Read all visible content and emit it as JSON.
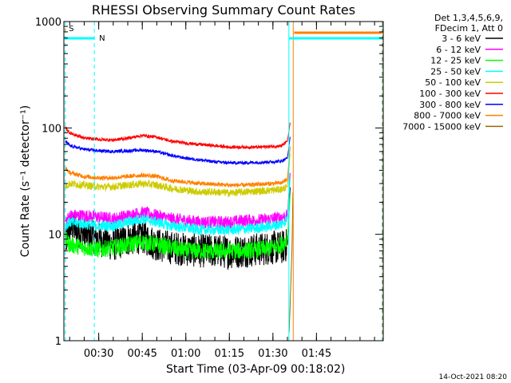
{
  "chart_data": {
    "type": "line",
    "title": "RHESSI Observing Summary Count Rates",
    "xlabel": "Start Time (03-Apr-09 00:18:02)",
    "ylabel": "Count Rate (s⁻¹ detector⁻¹)",
    "yscale": "log",
    "ylim": [
      1,
      1000
    ],
    "xlim_minutes": [
      18,
      128
    ],
    "y_ticks": [
      {
        "value": 1,
        "label": "1"
      },
      {
        "value": 10,
        "label": "10"
      },
      {
        "value": 100,
        "label": "100"
      },
      {
        "value": 1000,
        "label": "1000"
      }
    ],
    "x_ticks": [
      {
        "minute": 30,
        "label": "00:30"
      },
      {
        "minute": 45,
        "label": "00:45"
      },
      {
        "minute": 60,
        "label": "01:00"
      },
      {
        "minute": 75,
        "label": "01:15"
      },
      {
        "minute": 90,
        "label": "01:30"
      },
      {
        "minute": 105,
        "label": "01:45"
      }
    ],
    "legend_header": [
      "Det 1,3,4,5,6,9,",
      "FDecim 1, Att 0"
    ],
    "legend_position": "right",
    "series": [
      {
        "name": "3 - 6 keV",
        "color": "#000000",
        "noise": 0.16,
        "points": [
          [
            18.5,
            8
          ],
          [
            20,
            12
          ],
          [
            25,
            10
          ],
          [
            30,
            9
          ],
          [
            35,
            8
          ],
          [
            40,
            9
          ],
          [
            45,
            9.5
          ],
          [
            50,
            8
          ],
          [
            55,
            7.5
          ],
          [
            60,
            7.2
          ],
          [
            65,
            7
          ],
          [
            70,
            7
          ],
          [
            75,
            6.8
          ],
          [
            80,
            7
          ],
          [
            85,
            7.2
          ],
          [
            90,
            7.5
          ],
          [
            93,
            7.5
          ],
          [
            95,
            8
          ],
          [
            96,
            30
          ]
        ]
      },
      {
        "name": "6 - 12 keV",
        "color": "#ff00ff",
        "noise": 0.06,
        "points": [
          [
            18.5,
            13
          ],
          [
            20,
            15
          ],
          [
            25,
            15
          ],
          [
            30,
            14.5
          ],
          [
            35,
            14
          ],
          [
            40,
            15
          ],
          [
            45,
            16
          ],
          [
            50,
            15
          ],
          [
            55,
            14
          ],
          [
            60,
            13.5
          ],
          [
            65,
            13
          ],
          [
            70,
            13
          ],
          [
            75,
            13
          ],
          [
            80,
            13.5
          ],
          [
            85,
            13.5
          ],
          [
            90,
            14
          ],
          [
            93,
            14.5
          ],
          [
            95,
            15
          ],
          [
            96,
            40
          ]
        ]
      },
      {
        "name": "12 - 25 keV",
        "color": "#00ff00",
        "noise": 0.08,
        "points": [
          [
            18.5,
            9
          ],
          [
            20,
            8
          ],
          [
            25,
            7.5
          ],
          [
            30,
            7.2
          ],
          [
            35,
            7.5
          ],
          [
            40,
            8
          ],
          [
            45,
            8.5
          ],
          [
            50,
            8
          ],
          [
            55,
            7.5
          ],
          [
            60,
            7
          ],
          [
            65,
            7
          ],
          [
            70,
            6.9
          ],
          [
            75,
            7
          ],
          [
            80,
            7
          ],
          [
            85,
            7.2
          ],
          [
            90,
            7.5
          ],
          [
            93,
            8
          ],
          [
            95,
            9
          ],
          [
            96,
            25
          ]
        ]
      },
      {
        "name": "25 - 50 keV",
        "color": "#00ffff",
        "noise": 0.05,
        "points": [
          [
            18.5,
            12
          ],
          [
            20,
            13
          ],
          [
            25,
            12.5
          ],
          [
            30,
            12
          ],
          [
            35,
            12
          ],
          [
            40,
            13
          ],
          [
            45,
            14
          ],
          [
            50,
            13
          ],
          [
            55,
            12
          ],
          [
            60,
            11.5
          ],
          [
            65,
            11
          ],
          [
            70,
            11
          ],
          [
            75,
            11
          ],
          [
            80,
            11.2
          ],
          [
            85,
            11.5
          ],
          [
            90,
            12
          ],
          [
            93,
            12.5
          ],
          [
            95,
            14
          ],
          [
            96,
            35
          ]
        ]
      },
      {
        "name": "50 - 100 keV",
        "color": "#cccc00",
        "noise": 0.035,
        "points": [
          [
            18.5,
            28
          ],
          [
            20,
            30
          ],
          [
            25,
            29
          ],
          [
            30,
            28
          ],
          [
            35,
            28
          ],
          [
            40,
            29
          ],
          [
            45,
            30
          ],
          [
            50,
            29
          ],
          [
            55,
            27
          ],
          [
            60,
            26
          ],
          [
            65,
            25
          ],
          [
            70,
            25
          ],
          [
            75,
            24.5
          ],
          [
            80,
            25
          ],
          [
            85,
            25.5
          ],
          [
            90,
            26
          ],
          [
            93,
            26.5
          ],
          [
            95,
            28
          ],
          [
            96,
            60
          ]
        ]
      },
      {
        "name": "100 - 300 keV",
        "color": "#ff0000",
        "noise": 0.015,
        "points": [
          [
            18.5,
            100
          ],
          [
            20,
            90
          ],
          [
            25,
            80
          ],
          [
            30,
            78
          ],
          [
            35,
            77
          ],
          [
            40,
            80
          ],
          [
            45,
            85
          ],
          [
            50,
            82
          ],
          [
            55,
            75
          ],
          [
            60,
            72
          ],
          [
            65,
            70
          ],
          [
            70,
            68
          ],
          [
            75,
            66
          ],
          [
            80,
            66
          ],
          [
            85,
            66
          ],
          [
            90,
            67
          ],
          [
            93,
            68
          ],
          [
            95,
            75
          ],
          [
            96,
            115
          ]
        ]
      },
      {
        "name": "300 - 800 keV",
        "color": "#0000ff",
        "noise": 0.015,
        "points": [
          [
            18.5,
            75
          ],
          [
            20,
            68
          ],
          [
            25,
            63
          ],
          [
            30,
            61
          ],
          [
            35,
            60
          ],
          [
            40,
            61
          ],
          [
            45,
            62
          ],
          [
            50,
            60
          ],
          [
            55,
            55
          ],
          [
            60,
            52
          ],
          [
            65,
            50
          ],
          [
            70,
            48
          ],
          [
            75,
            47
          ],
          [
            80,
            47
          ],
          [
            85,
            47.5
          ],
          [
            90,
            48
          ],
          [
            93,
            49
          ],
          [
            95,
            52
          ],
          [
            96,
            85
          ]
        ]
      },
      {
        "name": "800 - 7000 keV",
        "color": "#ff8000",
        "noise": 0.02,
        "points": [
          [
            18.5,
            42
          ],
          [
            20,
            38
          ],
          [
            25,
            35
          ],
          [
            30,
            34
          ],
          [
            35,
            34
          ],
          [
            40,
            35
          ],
          [
            45,
            36
          ],
          [
            50,
            35
          ],
          [
            55,
            32
          ],
          [
            60,
            31
          ],
          [
            65,
            30
          ],
          [
            70,
            29.5
          ],
          [
            75,
            29
          ],
          [
            80,
            29
          ],
          [
            85,
            29.5
          ],
          [
            90,
            30
          ],
          [
            93,
            30.5
          ],
          [
            95,
            33
          ],
          [
            96,
            70
          ]
        ]
      },
      {
        "name": "7000 - 15000 keV",
        "color": "#996600",
        "noise": 0.0,
        "points": [
          [
            95.6,
            1.2
          ],
          [
            96,
            2.5
          ],
          [
            96.6,
            8
          ],
          [
            96.9,
            25
          ]
        ]
      }
    ],
    "flags": [
      {
        "label": "S",
        "color": "#ff8000",
        "start": 18.3,
        "end": 18.6
      },
      {
        "label": "N",
        "color": "#00ffff",
        "start": 18.3,
        "end": 28.5
      },
      {
        "label": "",
        "color": "#00ffff",
        "start": 95.5,
        "end": 127.6
      },
      {
        "label": "",
        "color": "#ff8000",
        "start": 97.3,
        "end": 127.6
      }
    ],
    "vlines": [
      {
        "minute": 18.5,
        "color": "#00ffff",
        "style": "dash"
      },
      {
        "minute": 28.5,
        "color": "#00ffff",
        "style": "dash"
      },
      {
        "minute": 95.5,
        "color": "#00ffff",
        "style": "solid"
      },
      {
        "minute": 127.6,
        "color": "#00ffff",
        "style": "dash"
      },
      {
        "minute": 97.0,
        "color": "#ff8000",
        "style": "solid"
      },
      {
        "minute": 127.8,
        "color": "#ff8000",
        "style": "dash"
      }
    ]
  },
  "footer": {
    "timestamp": "14-Oct-2021 08:20"
  }
}
